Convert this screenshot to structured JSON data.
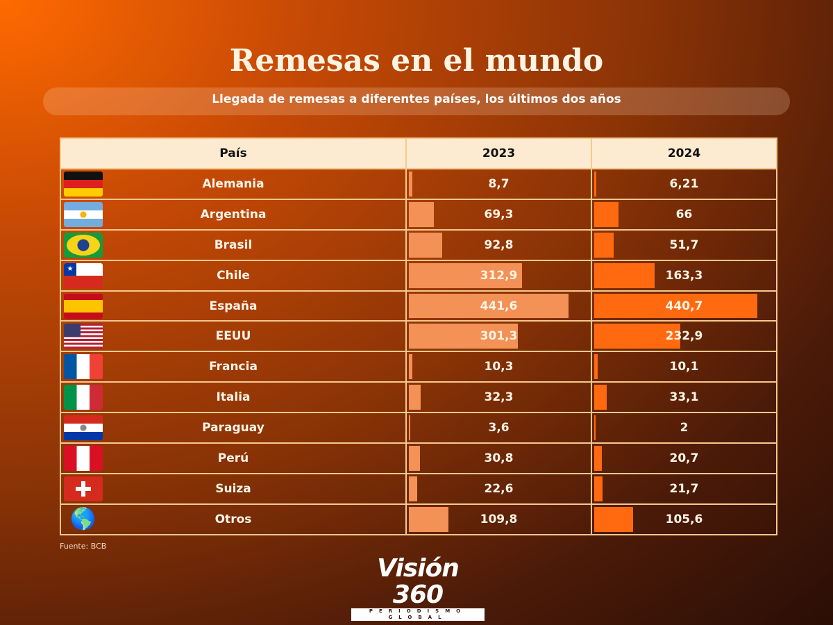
{
  "title": "Remesas en el mundo",
  "subtitle": "Llegada de remesas a diferentes países, los últimos dos años",
  "source": "Fuente: BCB",
  "logo": {
    "name": "Visión 360",
    "tagline": "PERIODISMO GLOBAL"
  },
  "colors": {
    "bar_2023": "#f39156",
    "bar_2024": "#ff6a10",
    "border": "#f7c98e",
    "header_bg": "#fdebd1"
  },
  "chart_data": {
    "type": "table",
    "columns": [
      "País",
      "2023",
      "2024"
    ],
    "rows": [
      {
        "country": "Alemania",
        "flag": "germany-flag",
        "v2023": "8,7",
        "v2024": "6,21",
        "n2023": 8.7,
        "n2024": 6.21
      },
      {
        "country": "Argentina",
        "flag": "argentina-flag",
        "v2023": "69,3",
        "v2024": "66",
        "n2023": 69.3,
        "n2024": 66
      },
      {
        "country": "Brasil",
        "flag": "brazil-flag",
        "v2023": "92,8",
        "v2024": "51,7",
        "n2023": 92.8,
        "n2024": 51.7
      },
      {
        "country": "Chile",
        "flag": "chile-flag",
        "v2023": "312,9",
        "v2024": "163,3",
        "n2023": 312.9,
        "n2024": 163.3
      },
      {
        "country": "España",
        "flag": "spain-flag",
        "v2023": "441,6",
        "v2024": "440,7",
        "n2023": 441.6,
        "n2024": 440.7
      },
      {
        "country": "EEUU",
        "flag": "usa-flag",
        "v2023": "301,3",
        "v2024": "232,9",
        "n2023": 301.3,
        "n2024": 232.9
      },
      {
        "country": "Francia",
        "flag": "france-flag",
        "v2023": "10,3",
        "v2024": "10,1",
        "n2023": 10.3,
        "n2024": 10.1
      },
      {
        "country": "Italia",
        "flag": "italy-flag",
        "v2023": "32,3",
        "v2024": "33,1",
        "n2023": 32.3,
        "n2024": 33.1
      },
      {
        "country": "Paraguay",
        "flag": "paraguay-flag",
        "v2023": "3,6",
        "v2024": "2",
        "n2023": 3.6,
        "n2024": 2
      },
      {
        "country": "Perú",
        "flag": "peru-flag",
        "v2023": "30,8",
        "v2024": "20,7",
        "n2023": 30.8,
        "n2024": 20.7
      },
      {
        "country": "Suiza",
        "flag": "switzerland-flag",
        "v2023": "22,6",
        "v2024": "21,7",
        "n2023": 22.6,
        "n2024": 21.7
      },
      {
        "country": "Otros",
        "flag": "globe",
        "v2023": "109,8",
        "v2024": "105,6",
        "n2023": 109.8,
        "n2024": 105.6
      }
    ],
    "max_value": 450
  }
}
